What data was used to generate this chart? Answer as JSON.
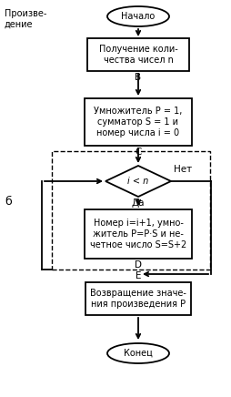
{
  "title_text": "Произве-\nдение",
  "label_b": "б",
  "start_text": "Начало",
  "end_text": "Конец",
  "box1_text": "Получение коли-\nчества чисел n",
  "label_B": "В",
  "box2_text": "Умножитель P = 1,\nсумматор S = 1 и\nномер числа i = 0",
  "label_C": "С",
  "diamond_text": "i < n",
  "label_no": "Нет",
  "label_yes": "Да",
  "box3_text": "Номер i=i+1, умно-\nжитель P=P·S и не-\nчетное число S=S+2",
  "label_D": "D",
  "label_E": "E",
  "box4_text": "Возвращение значе-\nния произведения P",
  "bg_color": "#ffffff",
  "font_size": 7.0,
  "font_size_label": 7.5
}
